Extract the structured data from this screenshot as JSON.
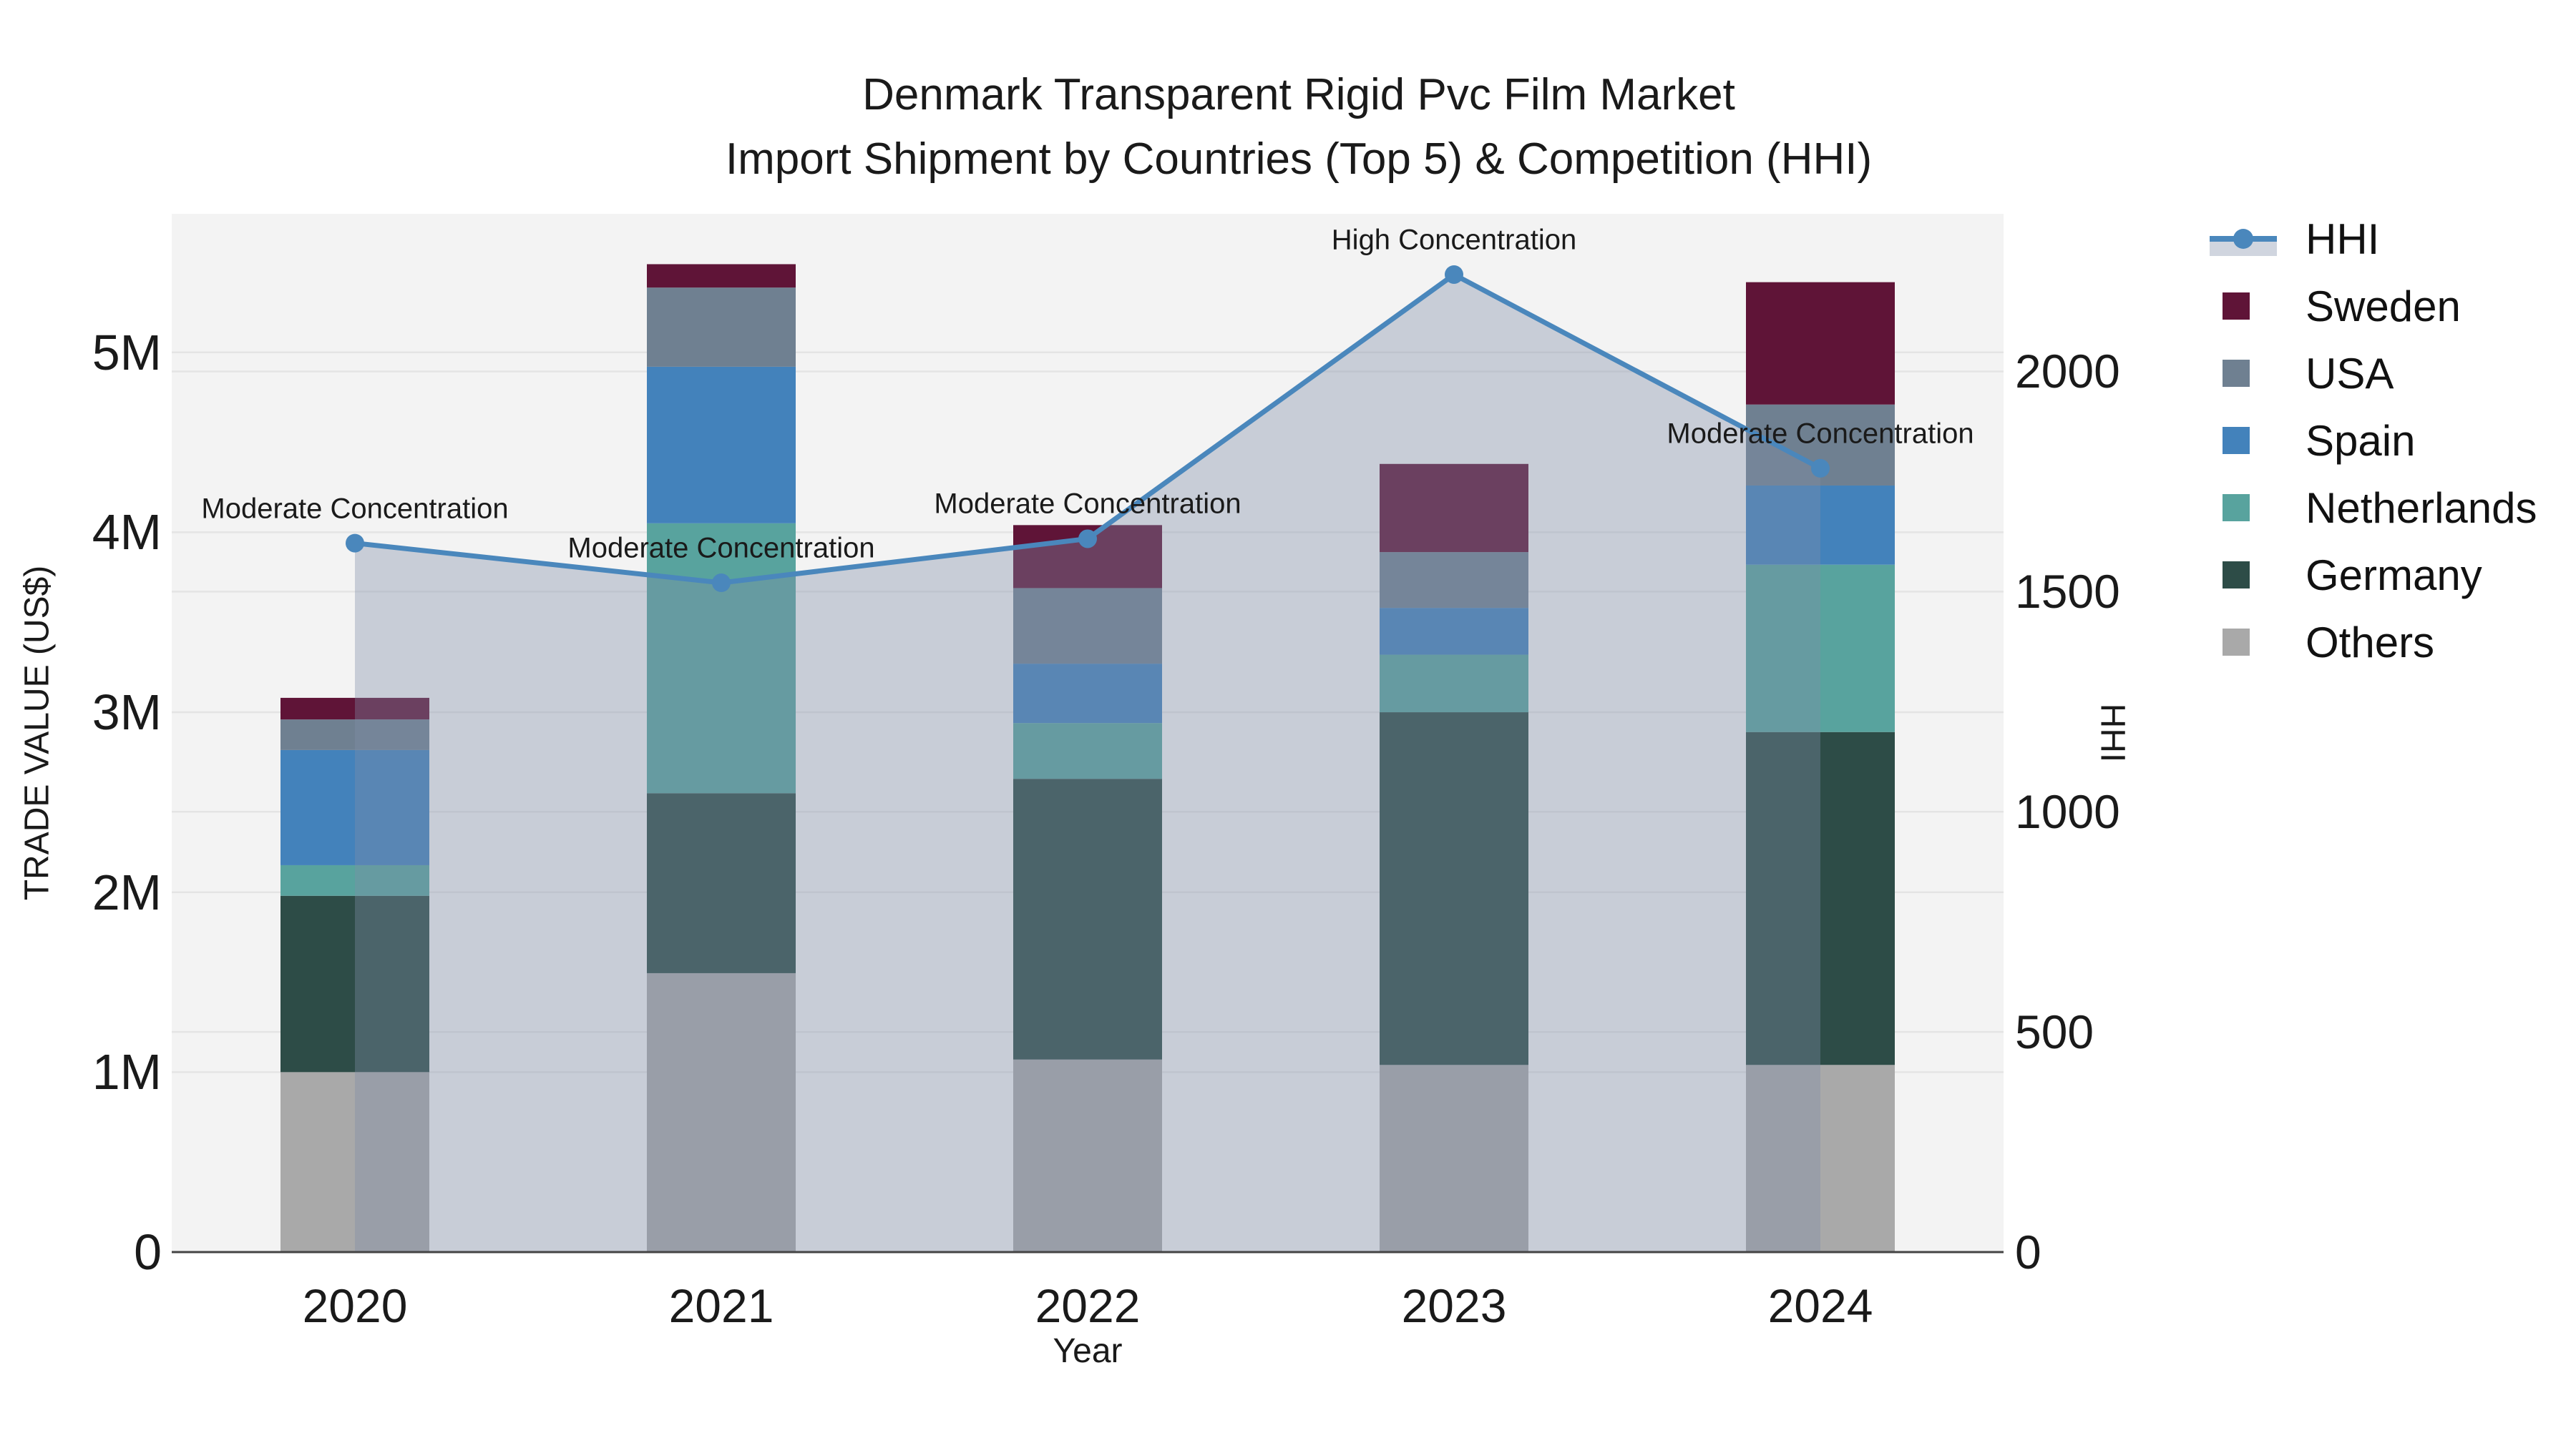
{
  "title": {
    "line1": "Denmark Transparent Rigid Pvc Film Market",
    "line2": "Import Shipment by Countries (Top 5) & Competition (HHI)"
  },
  "axes": {
    "y_left": {
      "title": "TRADE VALUE (US$)",
      "tick_labels": [
        "0",
        "1M",
        "2M",
        "3M",
        "4M",
        "5M"
      ],
      "tick_values_musd": [
        0,
        1,
        2,
        3,
        4,
        5
      ],
      "max_musd": 5.77
    },
    "y_right": {
      "title": "HHI",
      "tick_labels": [
        "0",
        "500",
        "1000",
        "1500",
        "2000"
      ],
      "tick_values": [
        0,
        500,
        1000,
        1500,
        2000
      ],
      "max": 2358
    },
    "x": {
      "title": "Year",
      "tick_labels": [
        "2020",
        "2021",
        "2022",
        "2023",
        "2024"
      ]
    }
  },
  "colors": {
    "sweden": "#5f1437",
    "usa": "#6f8091",
    "spain": "#4382bb",
    "netherlands": "#58a39e",
    "germany": "#2d4c47",
    "others": "#a9a9a9",
    "hhi": "#4a87bc",
    "hhi_fill": "#7f8da8",
    "hhi_fill_alpha": 0.37,
    "plot_bg": "#f3f3f3",
    "grid": "#e4e4e4",
    "axis_line": "#444444"
  },
  "legend": [
    {
      "label": "HHI",
      "key": "hhi",
      "type": "line"
    },
    {
      "label": "Sweden",
      "key": "sweden",
      "type": "square"
    },
    {
      "label": "USA",
      "key": "usa",
      "type": "square"
    },
    {
      "label": "Spain",
      "key": "spain",
      "type": "square"
    },
    {
      "label": "Netherlands",
      "key": "netherlands",
      "type": "square"
    },
    {
      "label": "Germany",
      "key": "germany",
      "type": "square"
    },
    {
      "label": "Others",
      "key": "others",
      "type": "square"
    }
  ],
  "chart_data": {
    "type": "bar",
    "subtype": "stacked-bar-with-line",
    "categories": [
      "2020",
      "2021",
      "2022",
      "2023",
      "2024"
    ],
    "series": [
      {
        "name": "Others",
        "key": "others",
        "values_musd": [
          1.0,
          1.55,
          1.07,
          1.04,
          1.04
        ]
      },
      {
        "name": "Germany",
        "key": "germany",
        "values_musd": [
          0.98,
          1.0,
          1.56,
          1.96,
          1.85
        ]
      },
      {
        "name": "Netherlands",
        "key": "netherlands",
        "values_musd": [
          0.17,
          1.5,
          0.31,
          0.32,
          0.93
        ]
      },
      {
        "name": "Spain",
        "key": "spain",
        "values_musd": [
          0.64,
          0.87,
          0.33,
          0.26,
          0.44
        ]
      },
      {
        "name": "USA",
        "key": "usa",
        "values_musd": [
          0.17,
          0.44,
          0.42,
          0.31,
          0.45
        ]
      },
      {
        "name": "Sweden",
        "key": "sweden",
        "values_musd": [
          0.12,
          0.13,
          0.35,
          0.49,
          0.68
        ]
      }
    ],
    "stack_totals_musd": [
      3.08,
      5.49,
      4.04,
      4.38,
      5.39
    ],
    "line_series": {
      "name": "HHI",
      "axis": "right",
      "values": [
        1610,
        1520,
        1620,
        2220,
        1780
      ],
      "area_fill": true
    },
    "annotations": [
      {
        "category": "2020",
        "text": "Moderate Concentration"
      },
      {
        "category": "2021",
        "text": "Moderate Concentration"
      },
      {
        "category": "2022",
        "text": "Moderate Concentration"
      },
      {
        "category": "2023",
        "text": "High Concentration"
      },
      {
        "category": "2024",
        "text": "Moderate Concentration"
      }
    ],
    "ylim_left_musd": [
      0,
      5.77
    ],
    "ylim_right": [
      0,
      2358
    ],
    "grid": true,
    "legend_position": "right"
  }
}
